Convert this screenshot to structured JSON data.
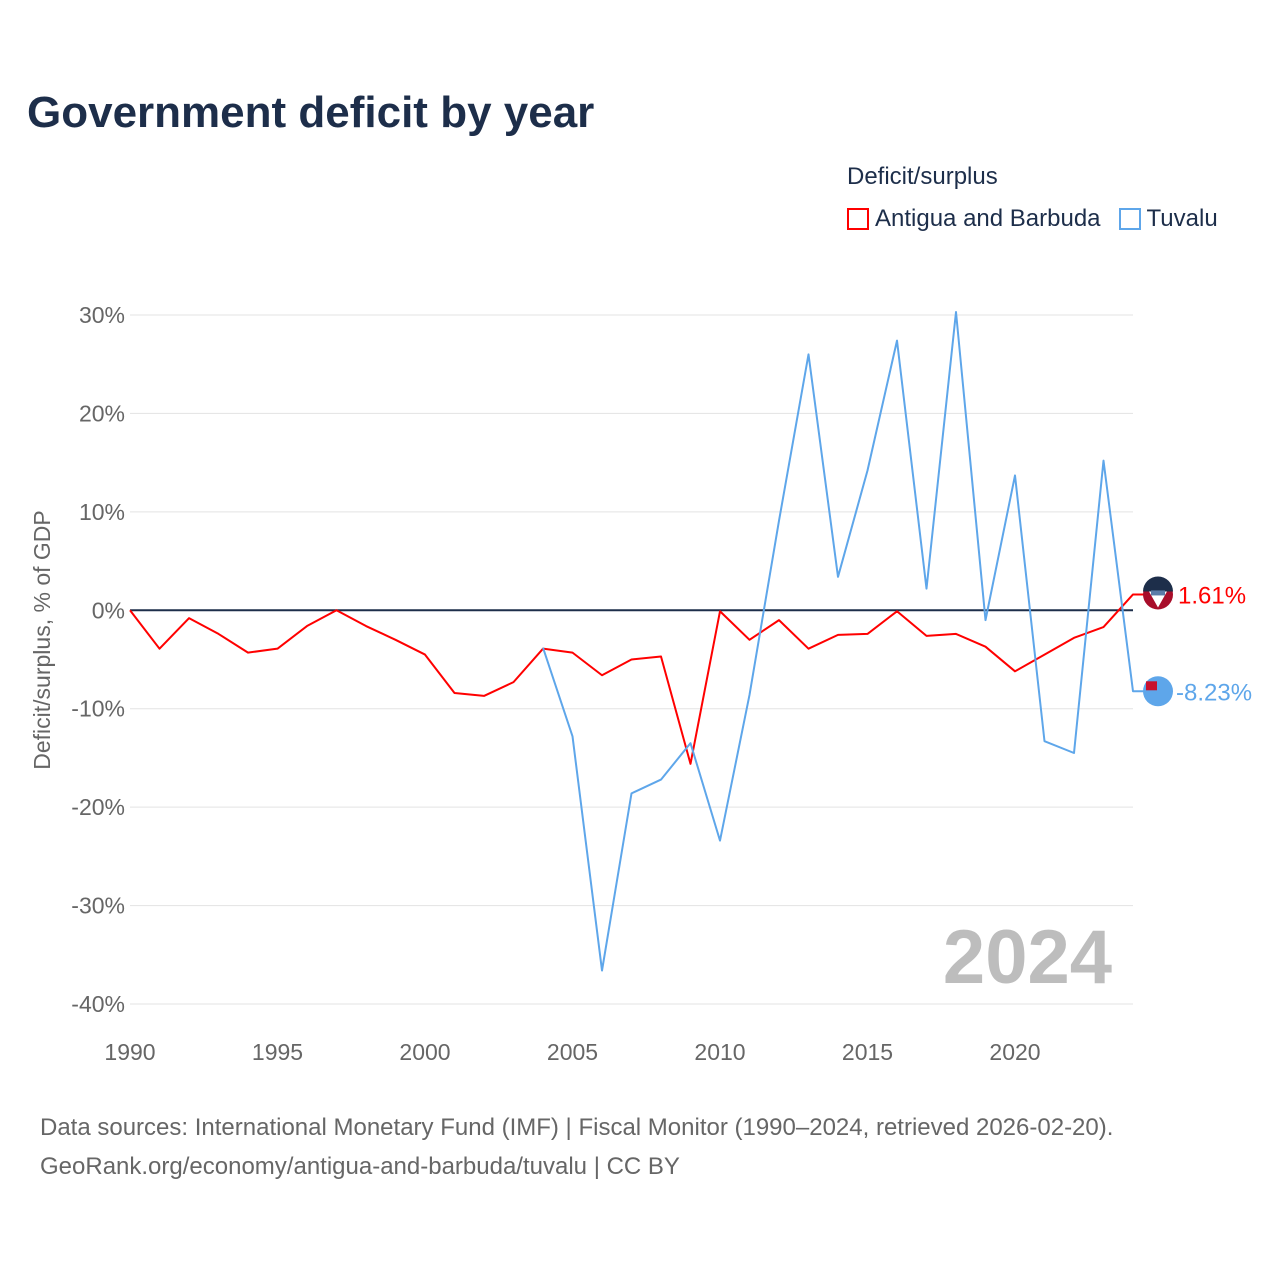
{
  "chart_data": {
    "type": "line",
    "title": "Government deficit by year",
    "legend_title": "Deficit/surplus",
    "legend_placement": "top-right",
    "ylabel": "Deficit/surplus, % of GDP",
    "xlabel": "",
    "xlim": [
      1990,
      2024
    ],
    "ylim": [
      -40,
      30
    ],
    "x_ticks": [
      "1990",
      "1995",
      "2000",
      "2005",
      "2010",
      "2015",
      "2020"
    ],
    "y_ticks": [
      "30%",
      "20%",
      "10%",
      "0%",
      "-10%",
      "-20%",
      "-30%",
      "-40%"
    ],
    "y_tick_values": [
      30,
      20,
      10,
      0,
      -10,
      -20,
      -30,
      -40
    ],
    "x_tick_values": [
      1990,
      1995,
      2000,
      2005,
      2010,
      2015,
      2020
    ],
    "watermark_year": "2024",
    "series": [
      {
        "name": "Antigua and Barbuda",
        "color": "#ff0000",
        "end_label": "1.61%",
        "x": [
          1990,
          1991,
          1992,
          1993,
          1994,
          1995,
          1996,
          1997,
          1998,
          1999,
          2000,
          2001,
          2002,
          2003,
          2004,
          2005,
          2006,
          2007,
          2008,
          2009,
          2010,
          2011,
          2012,
          2013,
          2014,
          2015,
          2016,
          2017,
          2018,
          2019,
          2020,
          2021,
          2022,
          2023,
          2024
        ],
        "values": [
          0,
          -3.9,
          -0.8,
          -2.4,
          -4.3,
          -3.9,
          -1.6,
          0,
          -1.6,
          -3.0,
          -4.5,
          -8.4,
          -8.7,
          -7.3,
          -3.9,
          -4.3,
          -6.6,
          -5.0,
          -4.7,
          -15.6,
          -0.1,
          -3.0,
          -1.0,
          -3.9,
          -2.5,
          -2.4,
          -0.1,
          -2.6,
          -2.4,
          -3.7,
          -6.2,
          -4.5,
          -2.8,
          -1.7,
          1.61
        ]
      },
      {
        "name": "Tuvalu",
        "color": "#5ea6ea",
        "end_label": "-8.23%",
        "x": [
          2004,
          2005,
          2006,
          2007,
          2008,
          2009,
          2010,
          2011,
          2012,
          2013,
          2014,
          2015,
          2016,
          2017,
          2018,
          2019,
          2020,
          2021,
          2022,
          2023,
          2024
        ],
        "values": [
          -3.8,
          -12.8,
          -36.6,
          -18.6,
          -17.2,
          -13.5,
          -23.4,
          -8.6,
          9.1,
          26.0,
          3.4,
          14.2,
          27.4,
          2.2,
          30.3,
          -1.0,
          13.7,
          -13.3,
          -14.5,
          15.2,
          -8.23
        ]
      }
    ]
  },
  "footer": {
    "sources": "Data sources: International Monetary Fund (IMF) | Fiscal Monitor (1990–2024, retrieved 2026-02-20).",
    "link": "GeoRank.org/economy/antigua-and-barbuda/tuvalu | CC BY"
  }
}
